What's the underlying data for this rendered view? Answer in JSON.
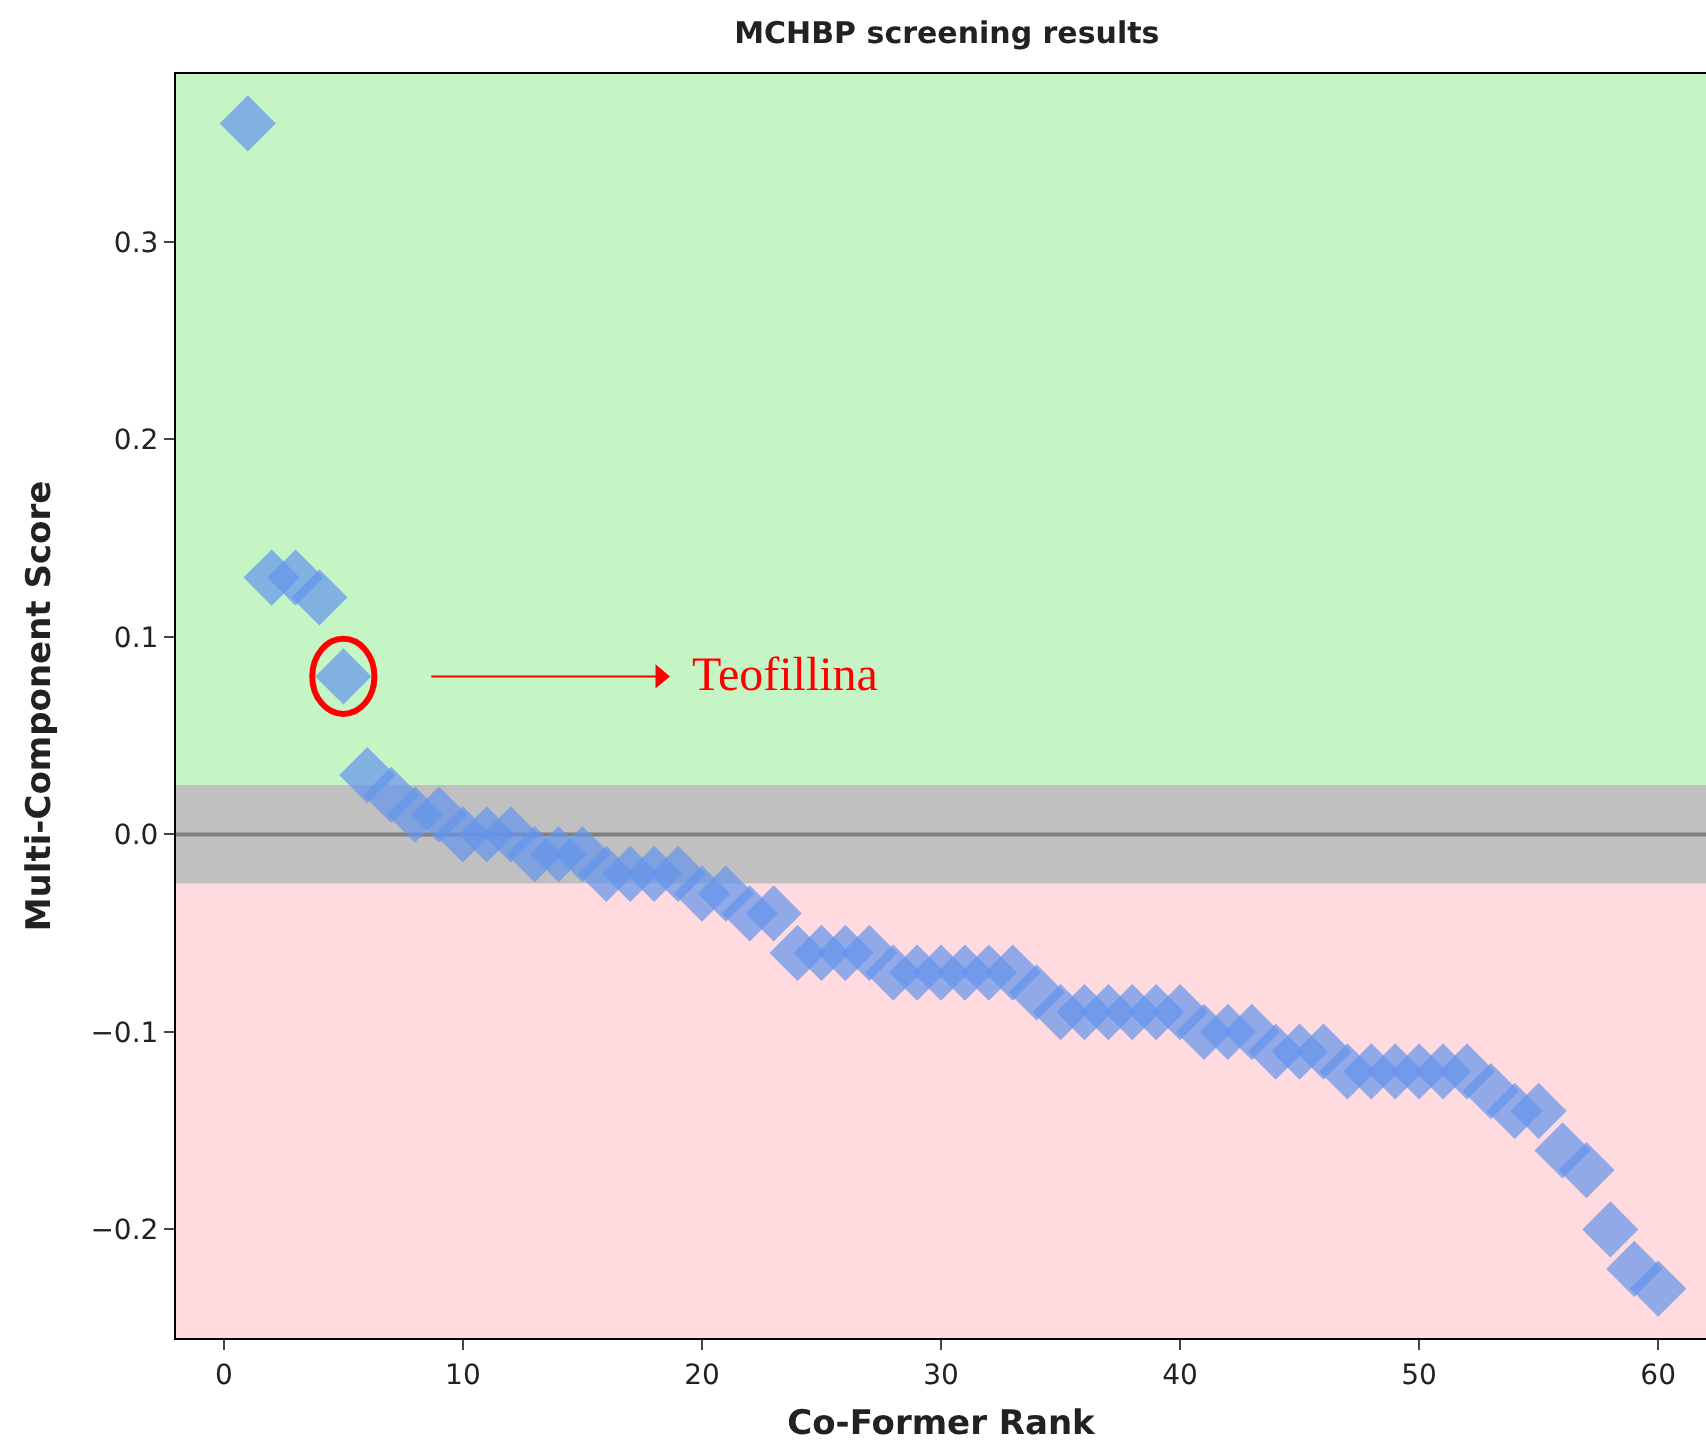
{
  "chart_data": {
    "type": "scatter",
    "title": "MCHBP screening results",
    "xlabel": "Co-Former Rank",
    "ylabel": "Multi-Component Score",
    "x": [
      1,
      2,
      3,
      4,
      5,
      6,
      7,
      8,
      9,
      10,
      11,
      12,
      13,
      14,
      15,
      16,
      17,
      18,
      19,
      20,
      21,
      22,
      23,
      24,
      25,
      26,
      27,
      28,
      29,
      30,
      31,
      32,
      33,
      34,
      35,
      36,
      37,
      38,
      39,
      40,
      41,
      42,
      43,
      44,
      45,
      46,
      47,
      48,
      49,
      50,
      51,
      52,
      53,
      54,
      55,
      56,
      57,
      58,
      59,
      60
    ],
    "series": [
      {
        "color": "#6495ed",
        "values": [
          0.36,
          0.13,
          0.13,
          0.12,
          0.08,
          0.03,
          0.02,
          0.01,
          0.01,
          0,
          0,
          0,
          -0.01,
          -0.01,
          -0.01,
          -0.02,
          -0.02,
          -0.02,
          -0.02,
          -0.03,
          -0.03,
          -0.04,
          -0.04,
          -0.06,
          -0.06,
          -0.06,
          -0.06,
          -0.07,
          -0.07,
          -0.07,
          -0.07,
          -0.07,
          -0.07,
          -0.08,
          -0.09,
          -0.09,
          -0.09,
          -0.09,
          -0.09,
          -0.09,
          -0.1,
          -0.1,
          -0.1,
          -0.11,
          -0.11,
          -0.11,
          -0.12,
          -0.12,
          -0.12,
          -0.12,
          -0.12,
          -0.12,
          -0.13,
          -0.14,
          -0.14,
          -0.16,
          -0.17,
          -0.2,
          -0.22,
          -0.23
        ]
      }
    ],
    "marker": "diamond",
    "xlim": [
      -2,
      62
    ],
    "ylim": [
      -0.255,
      0.385
    ],
    "xticks": [
      0,
      10,
      20,
      30,
      40,
      50,
      60
    ],
    "yticks": [
      {
        "value": -0.2,
        "label": "−0.2"
      },
      {
        "value": -0.1,
        "label": "−0.1"
      },
      {
        "value": 0,
        "label": "0.0"
      },
      0.1,
      0.2,
      0.3
    ],
    "bands": [
      {
        "axis": "y",
        "from": 0.025,
        "to": 0.385,
        "color": "#c5f5c5"
      },
      {
        "axis": "y",
        "from": -0.025,
        "to": 0.025,
        "color": "#c0c0c0"
      },
      {
        "axis": "y",
        "from": -0.255,
        "to": -0.025,
        "color": "#ffdadf"
      }
    ],
    "ref_lines": [
      {
        "axis": "y",
        "value": 0,
        "color": "#808080"
      }
    ],
    "annotations": [
      {
        "text": "Teofillina",
        "x": 5,
        "y": 0.08
      }
    ]
  }
}
